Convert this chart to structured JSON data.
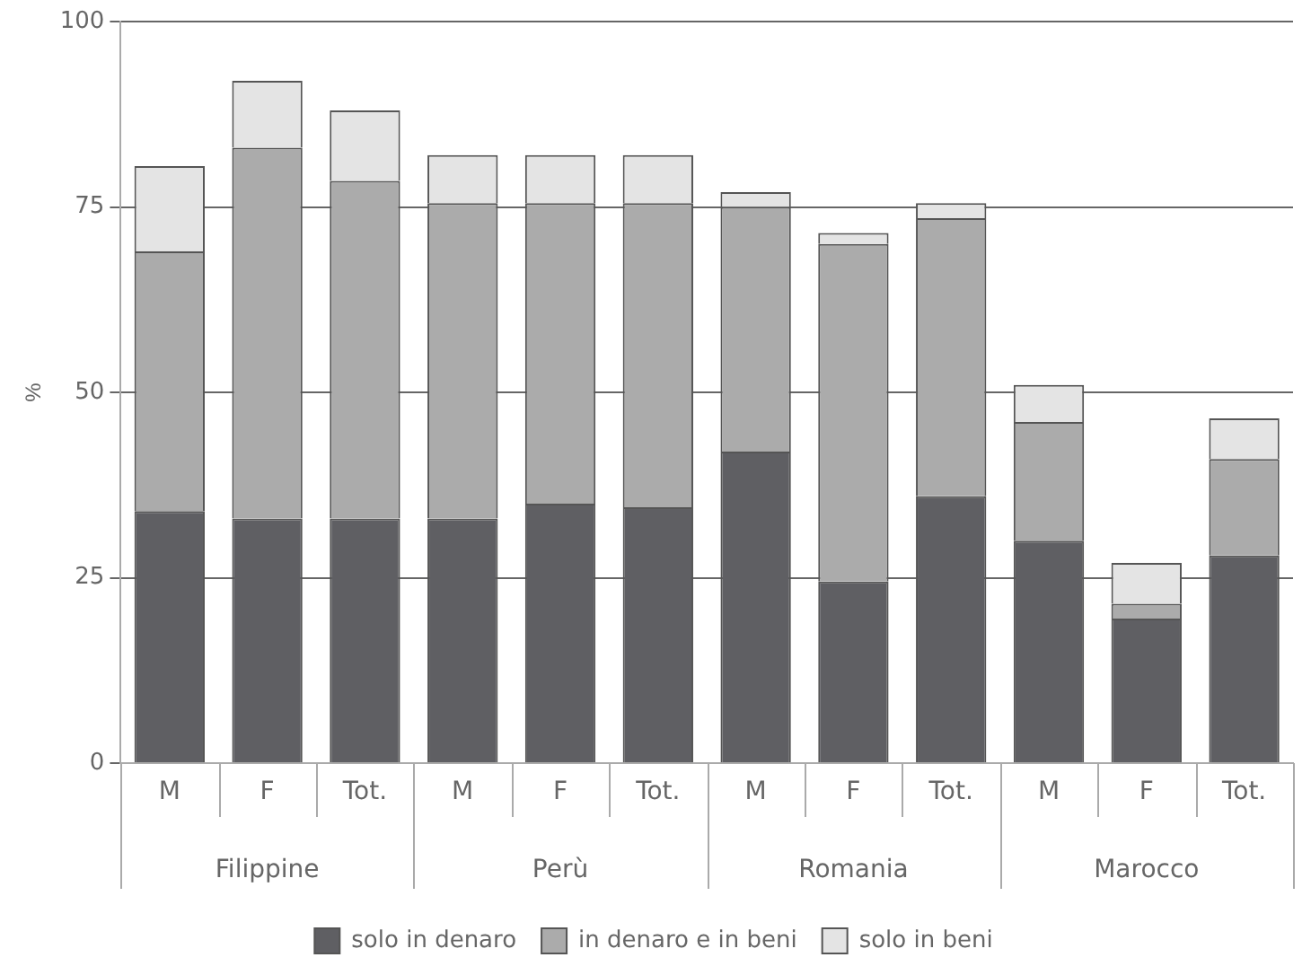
{
  "chart_data": {
    "type": "bar",
    "stacked": true,
    "ylabel": "%",
    "categories": [
      "M",
      "F",
      "Tot.",
      "M",
      "F",
      "Tot.",
      "M",
      "F",
      "Tot.",
      "M",
      "F",
      "Tot."
    ],
    "annotations": [
      "Filippine",
      "Perù",
      "Romania",
      "Marocco"
    ],
    "series": [
      {
        "name": "solo in denaro",
        "color": "#5f5f63",
        "values": [
          34,
          33,
          33,
          33,
          35,
          34.5,
          42,
          24.5,
          36,
          30,
          19.5,
          28
        ]
      },
      {
        "name": "in denaro e in beni",
        "color": "#ababab",
        "values": [
          35,
          50,
          45.5,
          42.5,
          40.5,
          41,
          33,
          45.5,
          37.5,
          16,
          2,
          13
        ]
      },
      {
        "name": "solo in beni",
        "color": "#e4e4e4",
        "values": [
          11.5,
          9,
          9.5,
          6.5,
          6.5,
          6.5,
          2,
          1.5,
          2,
          5,
          5.5,
          5.5
        ]
      }
    ],
    "ylim": [
      0,
      100
    ],
    "yticks": [
      0,
      25,
      50,
      75,
      100
    ],
    "grid": "y",
    "legend": "bottom"
  }
}
